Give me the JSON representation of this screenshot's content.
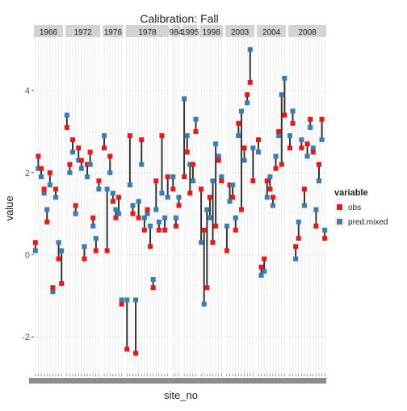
{
  "chart_data": {
    "type": "scatter",
    "title": "Calibration: Fall",
    "xlabel": "site_no",
    "ylabel": "value",
    "ylim": [
      -2.9,
      5.3
    ],
    "yticks": [
      -2,
      0,
      2,
      4
    ],
    "grid": true,
    "legend_position": "right",
    "legend": {
      "title": "variable",
      "items": [
        {
          "label": "obs",
          "color": "#E41A1C"
        },
        {
          "label": "pred.mixed",
          "color": "#377EB8"
        }
      ]
    },
    "facets": [
      {
        "label": "1966",
        "sites": 10
      },
      {
        "label": "1972",
        "sites": 12
      },
      {
        "label": "1976",
        "sites": 7
      },
      {
        "label": "1978",
        "sites": 15
      },
      {
        "label": "984",
        "sites": 3
      },
      {
        "label": "1995",
        "sites": 5
      },
      {
        "label": "1998",
        "sites": 8
      },
      {
        "label": "2003",
        "sites": 10
      },
      {
        "label": "2004",
        "sites": 10
      },
      {
        "label": "2008",
        "sites": 13
      }
    ],
    "series": [
      {
        "name": "obs",
        "values": [
          [
            0.3,
            2.4,
            2.1,
            1.6,
            0.8,
            2.0,
            -0.8,
            1.6,
            -0.1,
            -0.7
          ],
          [
            3.1,
            2.2,
            2.8,
            1.2,
            2.6,
            2.3,
            -0.1,
            2.2,
            2.5,
            0.9,
            0.1,
            1.8
          ],
          [
            2.6,
            0.1,
            2.4,
            1.3,
            0.9,
            1.4,
            -1.2
          ],
          [
            -2.3,
            2.9,
            1.0,
            -2.4,
            0.9,
            2.8,
            0.6,
            1.1,
            0.2,
            -0.8,
            1.8,
            0.6,
            2.9,
            0.6,
            1.9
          ],
          [
            1.6,
            0.7,
            1.2
          ],
          [
            1.9,
            2.5,
            1.5,
            2.2,
            3.0
          ],
          [
            1.6,
            0.6,
            -0.8,
            1.4,
            0.3,
            0.7,
            2.3,
            1.8
          ],
          [
            0.1,
            1.7,
            1.4,
            0.6,
            3.2,
            1.1,
            2.6,
            3.9,
            4.2,
            1.8
          ],
          [
            2.8,
            -0.3,
            -0.1,
            1.8,
            1.6,
            1.4,
            2.1,
            3.0,
            2.2,
            3.4
          ],
          [
            2.6,
            3.2,
            0.2,
            0.4,
            2.6,
            1.6,
            2.7,
            3.3,
            2.5,
            0.7,
            2.2,
            3.3,
            0.4
          ]
        ]
      },
      {
        "name": "pred.mixed",
        "values": [
          [
            0.1,
            2.1,
            1.9,
            1.5,
            1.1,
            1.7,
            -0.9,
            1.4,
            0.3,
            0.1
          ],
          [
            3.4,
            2.0,
            2.5,
            1.0,
            2.3,
            2.1,
            0.2,
            1.9,
            2.2,
            0.7,
            0.4,
            1.6
          ],
          [
            2.9,
            1.6,
            2.0,
            1.5,
            1.1,
            1.0,
            -1.1
          ],
          [
            -1.1,
            1.7,
            1.2,
            -1.1,
            1.3,
            2.2,
            0.9,
            1.0,
            0.7,
            -0.6,
            1.1,
            0.8,
            1.5,
            0.9,
            1.4
          ],
          [
            1.9,
            0.9,
            1.4
          ],
          [
            3.8,
            2.9,
            2.2,
            1.8,
            3.3
          ],
          [
            0.3,
            -1.2,
            1.1,
            0.9,
            1.8,
            2.7,
            2.4,
            1.9
          ],
          [
            0.7,
            1.3,
            1.7,
            0.9,
            2.9,
            3.5,
            2.3,
            3.7,
            5.0,
            2.6
          ],
          [
            2.5,
            -0.5,
            -0.4,
            1.4,
            1.9,
            1.2,
            2.4,
            2.9,
            3.9,
            4.3
          ],
          [
            2.9,
            3.5,
            -0.1,
            0.8,
            2.8,
            1.2,
            2.4,
            3.1,
            2.6,
            1.1,
            1.8,
            2.8,
            0.6
          ]
        ]
      }
    ]
  }
}
